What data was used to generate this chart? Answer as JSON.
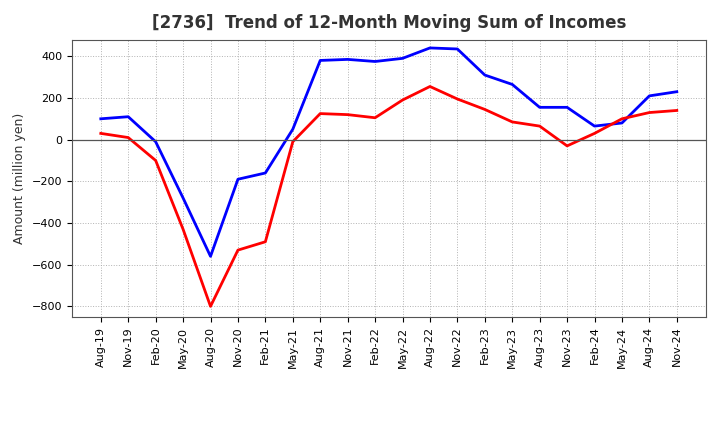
{
  "title": "[2736]  Trend of 12-Month Moving Sum of Incomes",
  "ylabel": "Amount (million yen)",
  "xlabels": [
    "Aug-19",
    "Nov-19",
    "Feb-20",
    "May-20",
    "Aug-20",
    "Nov-20",
    "Feb-21",
    "May-21",
    "Aug-21",
    "Nov-21",
    "Feb-22",
    "May-22",
    "Aug-22",
    "Nov-22",
    "Feb-23",
    "May-23",
    "Aug-23",
    "Nov-23",
    "Feb-24",
    "May-24",
    "Aug-24",
    "Nov-24"
  ],
  "ordinary_income": [
    100,
    110,
    -10,
    -280,
    -560,
    -190,
    -160,
    50,
    380,
    385,
    375,
    390,
    440,
    435,
    310,
    265,
    155,
    155,
    65,
    80,
    210,
    230
  ],
  "net_income": [
    30,
    10,
    -100,
    -430,
    -800,
    -530,
    -490,
    -10,
    125,
    120,
    105,
    190,
    255,
    195,
    145,
    85,
    65,
    -30,
    30,
    100,
    130,
    140
  ],
  "ordinary_color": "#0000FF",
  "net_color": "#FF0000",
  "ylim": [
    -850,
    480
  ],
  "yticks": [
    -800,
    -600,
    -400,
    -200,
    0,
    200,
    400
  ],
  "bg_color": "#FFFFFF",
  "grid_color": "#AAAAAA",
  "title_color": "#333333",
  "title_fontsize": 12,
  "ylabel_fontsize": 9,
  "tick_fontsize": 8,
  "legend_fontsize": 10,
  "linewidth": 2.0
}
